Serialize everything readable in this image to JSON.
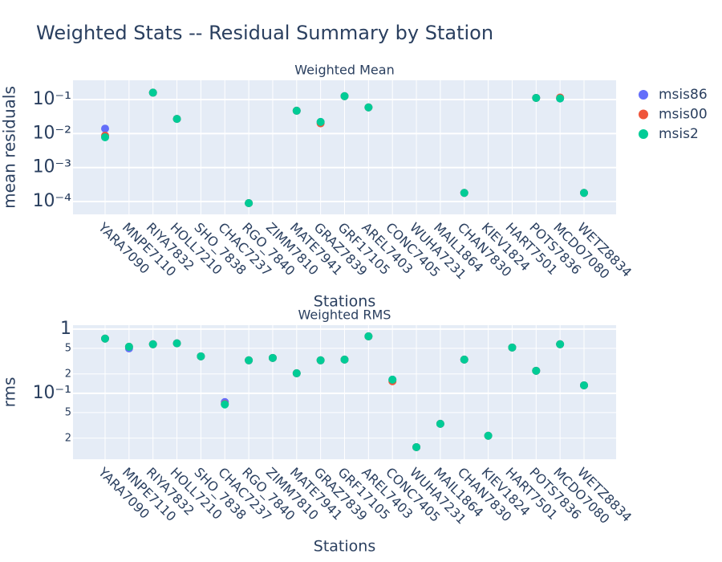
{
  "title": "Weighted Stats -- Residual Summary by Station",
  "chart_data": [
    {
      "type": "scatter",
      "subtitle": "Weighted Mean",
      "x_label": "Stations",
      "y_label": "mean residuals",
      "log_y": true,
      "grid": true,
      "legend": "right",
      "categories": [
        "YARA7090",
        "MNPE7110",
        "RIYA7832",
        "HOLL7210",
        "SHO_7838",
        "CHAC7237",
        "RGO_7840",
        "ZIMM7810",
        "MATE7941",
        "GRAZ7839",
        "GRF17105",
        "AREL7403",
        "CONC7405",
        "WUHA7231",
        "MAIL1864",
        "CHAN7830",
        "KIEV1824",
        "HART7501",
        "POTS7836",
        "MCDO7080",
        "WETZ8834"
      ],
      "ylim": [
        4.2e-05,
        0.37
      ],
      "yticks": [
        {
          "value": 0.0001,
          "label": "10⁻⁴"
        },
        {
          "value": 0.001,
          "label": "10⁻³"
        },
        {
          "value": 0.01,
          "label": "10⁻²"
        },
        {
          "value": 0.1,
          "label": "10⁻¹"
        }
      ],
      "series": [
        {
          "name": "msis86",
          "color": "#636efa",
          "values": [
            0.014,
            null,
            0.16,
            0.027,
            null,
            null,
            9e-05,
            null,
            0.047,
            0.022,
            0.126,
            0.059,
            null,
            null,
            null,
            0.00018,
            null,
            null,
            0.112,
            0.108,
            0.00018
          ]
        },
        {
          "name": "msis00",
          "color": "#ef553b",
          "values": [
            0.0087,
            null,
            0.16,
            0.027,
            null,
            null,
            9e-05,
            null,
            0.047,
            0.02,
            0.126,
            0.059,
            null,
            null,
            null,
            0.00018,
            null,
            null,
            0.112,
            0.115,
            0.00018
          ]
        },
        {
          "name": "msis2",
          "color": "#00cc96",
          "values": [
            0.0078,
            null,
            0.16,
            0.027,
            null,
            null,
            9e-05,
            null,
            0.047,
            0.022,
            0.126,
            0.059,
            null,
            null,
            null,
            0.00018,
            null,
            null,
            0.112,
            0.108,
            0.00018
          ]
        }
      ]
    },
    {
      "type": "scatter",
      "subtitle": "Weighted RMS",
      "x_label": "Stations",
      "y_label": "rms",
      "log_y": true,
      "grid": true,
      "categories": [
        "YARA7090",
        "MNPE7110",
        "RIYA7832",
        "HOLL7210",
        "SHO_7838",
        "CHAC7237",
        "RGO_7840",
        "ZIMM7810",
        "MATE7941",
        "GRAZ7839",
        "GRF17105",
        "AREL7403",
        "CONC7405",
        "WUHA7231",
        "MAIL1864",
        "CHAN7830",
        "KIEV1824",
        "HART7501",
        "POTS7836",
        "MCDO7080",
        "WETZ8834"
      ],
      "ylim": [
        0.0094,
        1.15
      ],
      "yticks": [
        {
          "value": 0.02,
          "label": "2"
        },
        {
          "value": 0.05,
          "label": "5"
        },
        {
          "value": 0.1,
          "label": "10⁻¹"
        },
        {
          "value": 0.2,
          "label": "2"
        },
        {
          "value": 0.5,
          "label": "5"
        },
        1
      ],
      "series": [
        {
          "color": "#636efa",
          "values": [
            0.71,
            0.5,
            0.58,
            0.6,
            0.376,
            0.073,
            0.326,
            0.355,
            0.205,
            0.326,
            0.335,
            0.77,
            0.163,
            0.0145,
            0.0335,
            0.335,
            0.0218,
            0.516,
            0.224,
            0.58,
            0.133
          ]
        },
        {
          "color": "#ef553b",
          "values": [
            0.71,
            0.53,
            0.58,
            0.6,
            0.376,
            0.068,
            0.326,
            0.355,
            0.205,
            0.326,
            0.335,
            0.77,
            0.154,
            0.0145,
            0.0335,
            0.335,
            0.0218,
            0.516,
            0.224,
            0.58,
            0.133
          ]
        },
        {
          "color": "#00cc96",
          "values": [
            0.71,
            0.53,
            0.58,
            0.6,
            0.376,
            0.067,
            0.326,
            0.355,
            0.205,
            0.326,
            0.335,
            0.77,
            0.163,
            0.0145,
            0.0335,
            0.335,
            0.0218,
            0.516,
            0.224,
            0.58,
            0.133
          ]
        }
      ]
    }
  ]
}
